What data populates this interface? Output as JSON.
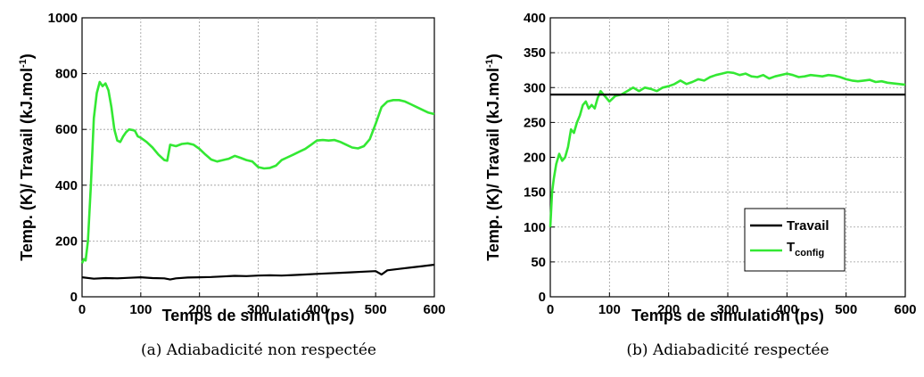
{
  "colors": {
    "travail": "#000000",
    "tconfig": "#33e833"
  },
  "chart_data": [
    {
      "type": "line",
      "caption": "(a) Adiabadicité non respectée",
      "xlabel": "Temps de simulation (ps)",
      "ylabel_main": "Temp. (K)/ Travail (kJ.mol",
      "ylabel_sup": "-1",
      "ylabel_close": ")",
      "xlim": [
        0,
        600
      ],
      "ylim": [
        0,
        1000
      ],
      "xticks": [
        0,
        100,
        200,
        300,
        400,
        500,
        600
      ],
      "yticks": [
        0,
        200,
        400,
        600,
        800,
        1000
      ],
      "grid": true,
      "series": [
        {
          "key": "tconfig",
          "color": "#33e833",
          "x": [
            0,
            3,
            6,
            10,
            15,
            20,
            25,
            30,
            35,
            40,
            45,
            50,
            55,
            60,
            65,
            70,
            75,
            80,
            85,
            90,
            95,
            100,
            110,
            120,
            130,
            140,
            145,
            150,
            160,
            170,
            180,
            190,
            200,
            210,
            220,
            230,
            240,
            250,
            260,
            270,
            280,
            290,
            300,
            310,
            320,
            330,
            340,
            350,
            360,
            370,
            380,
            390,
            400,
            410,
            420,
            430,
            440,
            450,
            460,
            470,
            480,
            490,
            500,
            510,
            520,
            530,
            540,
            550,
            560,
            570,
            580,
            590,
            600
          ],
          "y": [
            120,
            135,
            130,
            200,
            400,
            640,
            730,
            770,
            755,
            765,
            740,
            680,
            600,
            560,
            555,
            575,
            590,
            600,
            598,
            595,
            575,
            570,
            555,
            535,
            510,
            490,
            488,
            545,
            540,
            548,
            550,
            545,
            530,
            510,
            492,
            485,
            490,
            495,
            505,
            498,
            490,
            485,
            465,
            460,
            462,
            470,
            490,
            500,
            510,
            520,
            530,
            545,
            560,
            562,
            560,
            562,
            555,
            545,
            535,
            532,
            540,
            565,
            620,
            680,
            700,
            705,
            705,
            700,
            690,
            680,
            670,
            660,
            655
          ]
        },
        {
          "key": "travail",
          "color": "#000000",
          "x": [
            0,
            20,
            40,
            60,
            80,
            100,
            120,
            140,
            150,
            160,
            180,
            200,
            220,
            240,
            260,
            280,
            300,
            320,
            340,
            360,
            380,
            400,
            420,
            440,
            460,
            480,
            500,
            510,
            520,
            540,
            560,
            580,
            600
          ],
          "y": [
            70,
            65,
            67,
            66,
            68,
            70,
            67,
            66,
            62,
            66,
            69,
            70,
            71,
            73,
            75,
            74,
            76,
            77,
            76,
            78,
            80,
            82,
            84,
            86,
            88,
            90,
            92,
            80,
            95,
            100,
            105,
            110,
            115
          ]
        }
      ]
    },
    {
      "type": "line",
      "caption": "(b) Adiabadicité respectée",
      "xlabel": "Temps de simulation (ps)",
      "ylabel_main": "Temp. (K)/ Travail (kJ.mol",
      "ylabel_sup": "-1",
      "ylabel_close": ")",
      "xlim": [
        0,
        600
      ],
      "ylim": [
        0,
        400
      ],
      "xticks": [
        0,
        100,
        200,
        300,
        400,
        500,
        600
      ],
      "yticks": [
        0,
        50,
        100,
        150,
        200,
        250,
        300,
        350,
        400
      ],
      "grid": true,
      "legend": {
        "position": "lower-right",
        "items": [
          {
            "key": "travail",
            "label": "Travail",
            "sub": ""
          },
          {
            "key": "tconfig",
            "label": "T",
            "sub": "config"
          }
        ]
      },
      "series": [
        {
          "key": "tconfig",
          "color": "#33e833",
          "x": [
            0,
            3,
            6,
            10,
            15,
            20,
            25,
            30,
            35,
            40,
            45,
            50,
            55,
            60,
            65,
            70,
            75,
            80,
            85,
            90,
            95,
            100,
            110,
            120,
            130,
            140,
            150,
            160,
            170,
            180,
            190,
            200,
            210,
            220,
            230,
            240,
            250,
            260,
            270,
            280,
            290,
            300,
            310,
            320,
            330,
            340,
            350,
            360,
            370,
            380,
            390,
            400,
            410,
            420,
            430,
            440,
            450,
            460,
            470,
            480,
            490,
            500,
            510,
            520,
            530,
            540,
            550,
            560,
            570,
            580,
            590,
            600
          ],
          "y": [
            100,
            150,
            170,
            190,
            205,
            195,
            200,
            215,
            240,
            235,
            250,
            260,
            275,
            280,
            270,
            275,
            270,
            285,
            295,
            290,
            285,
            280,
            288,
            290,
            295,
            300,
            295,
            300,
            298,
            295,
            300,
            302,
            305,
            310,
            305,
            308,
            312,
            310,
            315,
            318,
            320,
            322,
            321,
            318,
            320,
            316,
            315,
            318,
            313,
            316,
            318,
            320,
            318,
            315,
            316,
            318,
            317,
            316,
            318,
            317,
            315,
            312,
            310,
            309,
            310,
            311,
            308,
            309,
            307,
            306,
            305,
            304
          ]
        },
        {
          "key": "travail",
          "color": "#000000",
          "x": [
            0,
            600
          ],
          "y": [
            290,
            290
          ]
        }
      ]
    }
  ]
}
